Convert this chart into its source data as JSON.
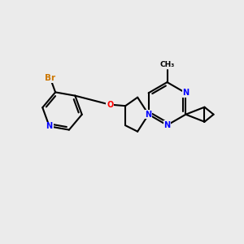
{
  "bg_color": "#ebebeb",
  "bond_color": "#000000",
  "bond_width": 1.5,
  "atom_colors": {
    "N": "#0000ff",
    "O": "#ff0000",
    "Br": "#cc7700",
    "C": "#000000"
  },
  "font_size": 7.0
}
